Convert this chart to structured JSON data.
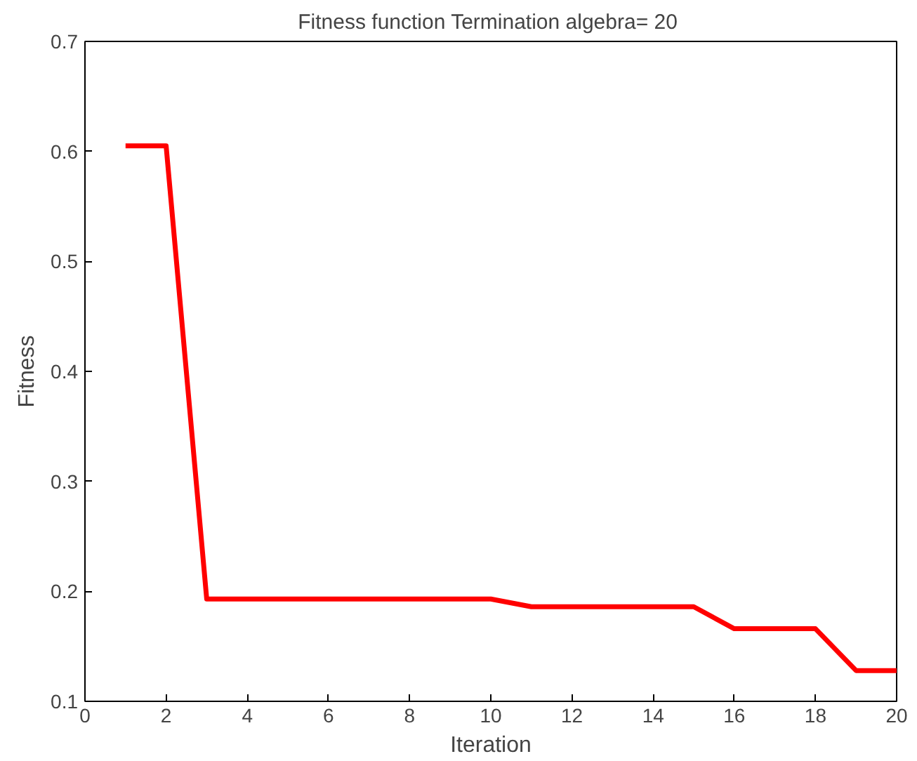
{
  "chart_data": {
    "type": "line",
    "title": "Fitness function  Termination algebra= 20",
    "xlabel": "Iteration",
    "ylabel": "Fitness",
    "x": [
      1,
      2,
      3,
      4,
      5,
      6,
      7,
      8,
      9,
      10,
      11,
      12,
      13,
      14,
      15,
      16,
      17,
      18,
      19,
      20
    ],
    "series": [
      {
        "color": "#ff0000",
        "values": [
          0.605,
          0.605,
          0.193,
          0.193,
          0.193,
          0.193,
          0.193,
          0.193,
          0.193,
          0.193,
          0.186,
          0.186,
          0.186,
          0.186,
          0.186,
          0.166,
          0.166,
          0.166,
          0.128,
          0.128
        ]
      }
    ],
    "xlim": [
      0,
      20
    ],
    "ylim": [
      0.1,
      0.7
    ],
    "xticks": [
      0,
      2,
      4,
      6,
      8,
      10,
      12,
      14,
      16,
      18,
      20
    ],
    "yticks": [
      0.1,
      0.2,
      0.3,
      0.4,
      0.5,
      0.6,
      0.7
    ],
    "grid": false,
    "marker": "none",
    "line_style": "solid"
  }
}
